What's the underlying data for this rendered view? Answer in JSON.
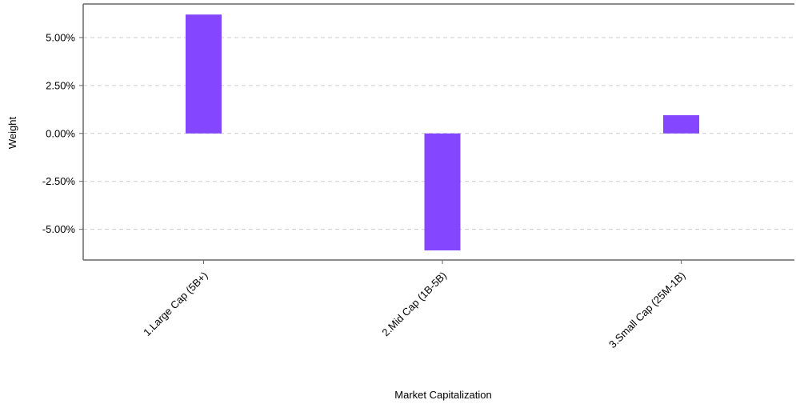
{
  "chart_data": {
    "type": "bar",
    "categories": [
      "1.Large Cap (5B+)",
      "2.Mid Cap (1B-5B)",
      "3.Small Cap (25M-1B)"
    ],
    "values": [
      6.2,
      -6.1,
      0.95
    ],
    "value_unit": "%",
    "xlabel": "Market Capitalization",
    "ylabel": "Weight",
    "yticks": [
      "5.00%",
      "2.50%",
      "0.00%",
      "-2.50%",
      "-5.00%"
    ],
    "ytick_values": [
      5.0,
      2.5,
      0.0,
      -2.5,
      -5.0
    ],
    "ylim": [
      -6.6,
      6.75
    ],
    "grid": true,
    "bar_color": "#8447FF"
  }
}
